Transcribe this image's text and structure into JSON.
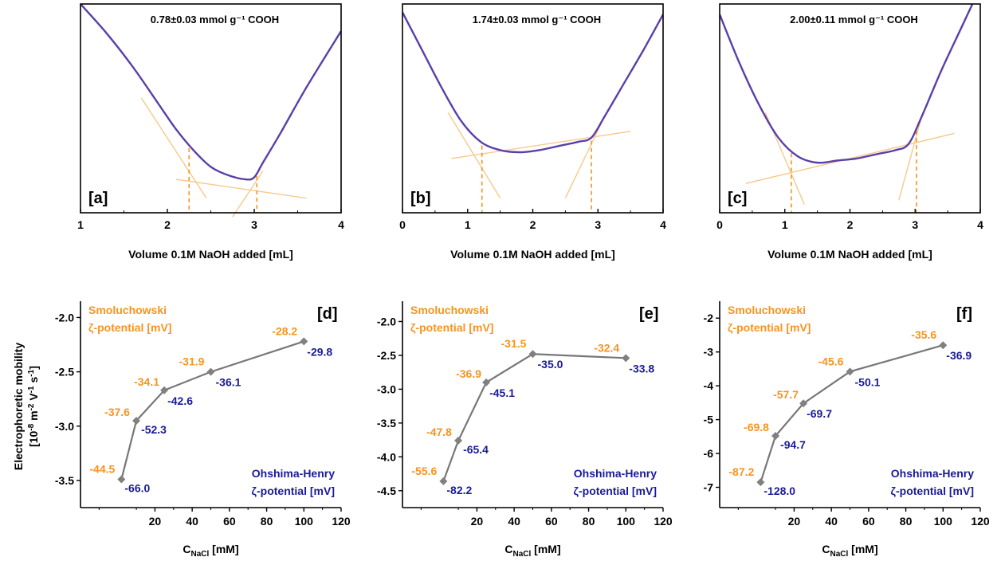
{
  "figure": {
    "ylabel_line1": "Electrophoretic mobility",
    "ylabel_line2_prefix": "[10",
    "ylabel_exp1": "-8",
    "ylabel_mid1": " m",
    "ylabel_exp2": "-2",
    "ylabel_mid2": " V",
    "ylabel_exp3": "-1",
    "ylabel_mid3": " s",
    "ylabel_exp4": "-1",
    "ylabel_suffix": "]"
  },
  "colors": {
    "curve": "#5a3fa8",
    "tangent": "#f7c98a",
    "dash": "#f7941d",
    "line": "#777777",
    "marker": "#808080",
    "smoluchowski": "#f7941d",
    "ohshima": "#1a1a99"
  },
  "chart_data": [
    {
      "id": "a",
      "type": "line",
      "panel_label": "[a]",
      "annotation": "0.78±0.03 mmol g⁻¹ COOH",
      "xlabel": "Volume 0.1M NaOH added [mL]",
      "xlim": [
        1,
        4
      ],
      "xticks": [
        1,
        2,
        3,
        4
      ],
      "endpoints": [
        2.25,
        3.03
      ],
      "x": [
        1.0,
        1.3,
        1.6,
        1.9,
        2.1,
        2.3,
        2.5,
        2.7,
        2.9,
        3.0,
        3.1,
        3.3,
        3.6,
        4.0
      ],
      "y": [
        1.0,
        0.86,
        0.7,
        0.52,
        0.4,
        0.3,
        0.22,
        0.18,
        0.16,
        0.17,
        0.24,
        0.38,
        0.6,
        0.87
      ]
    },
    {
      "id": "b",
      "type": "line",
      "panel_label": "[b]",
      "annotation": "1.74±0.03 mmol g⁻¹ COOH",
      "xlabel": "Volume 0.1M NaOH added [mL]",
      "xlim": [
        0,
        4
      ],
      "xticks": [
        0,
        1,
        2,
        3,
        4
      ],
      "endpoints": [
        1.22,
        2.9
      ],
      "x": [
        0.0,
        0.3,
        0.6,
        0.9,
        1.2,
        1.5,
        1.8,
        2.1,
        2.4,
        2.7,
        2.9,
        3.1,
        3.4,
        3.7,
        4.0
      ],
      "y": [
        0.96,
        0.78,
        0.6,
        0.44,
        0.34,
        0.3,
        0.29,
        0.3,
        0.32,
        0.34,
        0.36,
        0.46,
        0.62,
        0.78,
        0.95
      ]
    },
    {
      "id": "c",
      "type": "line",
      "panel_label": "[c]",
      "annotation": "2.00±0.11 mmol g⁻¹ COOH",
      "xlabel": "Volume 0.1M NaOH added [mL]",
      "xlim": [
        0,
        4
      ],
      "xticks": [
        0,
        1,
        2,
        3,
        4
      ],
      "endpoints": [
        1.1,
        3.02
      ],
      "x": [
        0.0,
        0.3,
        0.6,
        0.9,
        1.2,
        1.5,
        1.8,
        2.1,
        2.4,
        2.7,
        2.9,
        3.1,
        3.4,
        3.7,
        4.0
      ],
      "y": [
        0.95,
        0.72,
        0.52,
        0.36,
        0.27,
        0.24,
        0.25,
        0.26,
        0.28,
        0.3,
        0.33,
        0.46,
        0.68,
        0.88,
        1.08
      ]
    },
    {
      "id": "d",
      "type": "line",
      "panel_label": "[d]",
      "xlabel_main": "C",
      "xlabel_sub": "NaCl",
      "xlabel_unit": " [mM]",
      "xlim": [
        -20,
        120
      ],
      "xticks": [
        20,
        40,
        60,
        80,
        100,
        120
      ],
      "ylim": [
        -3.75,
        -1.85
      ],
      "yticks": [
        -3.5,
        -3.0,
        -2.5,
        -2.0
      ],
      "ytick_labels": [
        "-3.5",
        "-3.0",
        "-2.5",
        "-2.0"
      ],
      "smoluchowski_label_1": "Smoluchowski",
      "smoluchowski_label_2": "ζ-potential [mV]",
      "ohshima_label_1": "Ohshima-Henry",
      "ohshima_label_2": "ζ-potential [mV]",
      "x": [
        2,
        10,
        25,
        50,
        100
      ],
      "y": [
        -3.49,
        -2.95,
        -2.67,
        -2.5,
        -2.22
      ],
      "smoluchowski": [
        "-44.5",
        "-37.6",
        "-34.1",
        "-31.9",
        "-28.2"
      ],
      "ohshima_henry": [
        "-66.0",
        "-52.3",
        "-42.6",
        "-36.1",
        "-29.8"
      ]
    },
    {
      "id": "e",
      "type": "line",
      "panel_label": "[e]",
      "xlabel_main": "C",
      "xlabel_sub": "NaCl",
      "xlabel_unit": " [mM]",
      "xlim": [
        -20,
        120
      ],
      "xticks": [
        20,
        40,
        60,
        80,
        100,
        120
      ],
      "ylim": [
        -4.75,
        -1.7
      ],
      "yticks": [
        -4.5,
        -4.0,
        -3.5,
        -3.0,
        -2.5,
        -2.0
      ],
      "ytick_labels": [
        "-4.5",
        "-4.0",
        "-3.5",
        "-3.0",
        "-2.5",
        "-2.0"
      ],
      "smoluchowski_label_1": "Smoluchowski",
      "smoluchowski_label_2": "ζ-potential [mV]",
      "ohshima_label_1": "Ohshima-Henry",
      "ohshima_label_2": "ζ-potential [mV]",
      "x": [
        2,
        10,
        25,
        50,
        100
      ],
      "y": [
        -4.36,
        -3.76,
        -2.9,
        -2.48,
        -2.54
      ],
      "smoluchowski": [
        "-55.6",
        "-47.8",
        "-36.9",
        "-31.5",
        "-32.4"
      ],
      "ohshima_henry": [
        "-82.2",
        "-65.4",
        "-45.1",
        "-35.0",
        "-33.8"
      ]
    },
    {
      "id": "f",
      "type": "line",
      "panel_label": "[f]",
      "xlabel_main": "C",
      "xlabel_sub": "NaCl",
      "xlabel_unit": " [mM]",
      "xlim": [
        -20,
        120
      ],
      "xticks": [
        20,
        40,
        60,
        80,
        100,
        120
      ],
      "ylim": [
        -7.6,
        -1.5
      ],
      "yticks": [
        -7,
        -6,
        -5,
        -4,
        -3,
        -2
      ],
      "ytick_labels": [
        "-7",
        "-6",
        "-5",
        "-4",
        "-3",
        "-2"
      ],
      "smoluchowski_label_1": "Smoluchowski",
      "smoluchowski_label_2": "ζ-potential [mV]",
      "ohshima_label_1": "Ohshima-Henry",
      "ohshima_label_2": "ζ-potential [mV]",
      "x": [
        2,
        10,
        25,
        50,
        100
      ],
      "y": [
        -6.85,
        -5.48,
        -4.52,
        -3.58,
        -2.8
      ],
      "smoluchowski": [
        "-87.2",
        "-69.8",
        "-57.7",
        "-45.6",
        "-35.6"
      ],
      "ohshima_henry": [
        "-128.0",
        "-94.7",
        "-69.7",
        "-50.1",
        "-36.9"
      ]
    }
  ]
}
